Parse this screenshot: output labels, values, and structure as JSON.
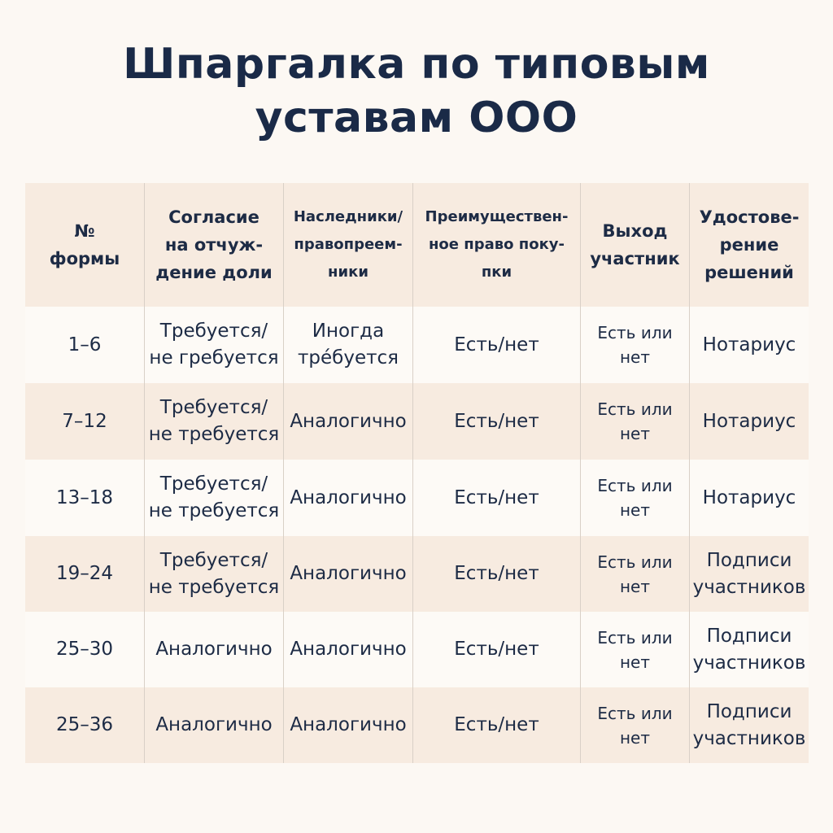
{
  "title": {
    "line1": "Шпаргалка по типовым",
    "line2": "уставам ООО"
  },
  "table": {
    "headers": [
      "№\nформы",
      "Согласие\nна отчуж-\nдение доли",
      "Наследники/\nправопреем-\nники",
      "Преимуществен-\nное право поку-\nпки",
      "Выход\nучастник",
      "Удостове-\nрение\nрешений"
    ],
    "rows": [
      [
        "1–6",
        "Требуется/\nне гребуется",
        "Иногда\nтрéбуется",
        "Есть/нет",
        "Есть или\nнет",
        "Нотариус"
      ],
      [
        "7–12",
        "Требуется/\nне требуется",
        "Аналогично",
        "Есть/нет",
        "Есть или\nнет",
        "Нотариус"
      ],
      [
        "13–18",
        "Требуется/\nне требуется",
        "Аналогично",
        "Есть/нет",
        "Есть или\nнет",
        "Нотариус"
      ],
      [
        "19–24",
        "Требуется/\nне требуется",
        "Аналогично",
        "Есть/нет",
        "Есть или\nнет",
        "Подписи\nучастников"
      ],
      [
        "25–30",
        "Аналогично",
        "Аналогично",
        "Есть/нет",
        "Есть или\nнет",
        "Подписи\nучастников"
      ],
      [
        "25–36",
        "Аналогично",
        "Аналогично",
        "Есть/нет",
        "Есть или\nнет",
        "Подписи\nучастников"
      ]
    ]
  }
}
